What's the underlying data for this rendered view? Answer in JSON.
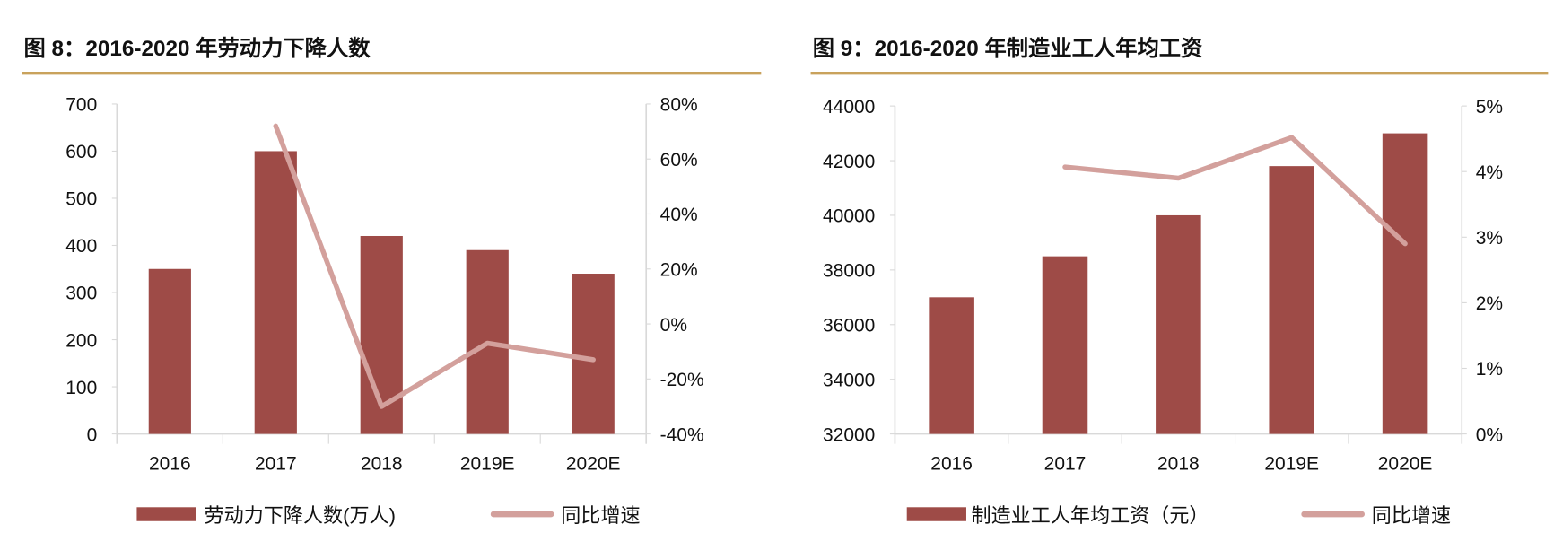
{
  "colors": {
    "bar": "#9e4b47",
    "line": "#d3a09c",
    "rule": "#c9a25c",
    "axis": "#d9d9d9"
  },
  "chart_data": [
    {
      "type": "bar+line",
      "title": "图 8：2016-2020 年劳动力下降人数",
      "categories": [
        "2016",
        "2017",
        "2018",
        "2019E",
        "2020E"
      ],
      "series": [
        {
          "name": "劳动力下降人数(万人)",
          "type": "bar",
          "axis": "left",
          "values": [
            350,
            600,
            420,
            390,
            340
          ]
        },
        {
          "name": "同比增速",
          "type": "line",
          "axis": "right",
          "values": [
            null,
            72,
            -30,
            -7,
            -13
          ]
        }
      ],
      "ylim": [
        0,
        700
      ],
      "yticks": [
        0,
        100,
        200,
        300,
        400,
        500,
        600,
        700
      ],
      "y2lim": [
        -40,
        80
      ],
      "y2ticks": [
        -40,
        -20,
        0,
        20,
        40,
        60,
        80
      ],
      "y2format": "percent",
      "grid": false,
      "legend": "bottom"
    },
    {
      "type": "bar+line",
      "title": "图 9：2016-2020 年制造业工人年均工资",
      "categories": [
        "2016",
        "2017",
        "2018",
        "2019E",
        "2020E"
      ],
      "series": [
        {
          "name": "制造业工人年均工资（元）",
          "type": "bar",
          "axis": "left",
          "values": [
            37000,
            38500,
            40000,
            41800,
            43000
          ]
        },
        {
          "name": "同比增速",
          "type": "line",
          "axis": "right",
          "values": [
            null,
            4.07,
            3.9,
            4.52,
            2.9
          ]
        }
      ],
      "ylim": [
        32000,
        44000
      ],
      "yticks": [
        32000,
        34000,
        36000,
        38000,
        40000,
        42000,
        44000
      ],
      "y2lim": [
        0,
        5
      ],
      "y2ticks": [
        0,
        1,
        2,
        3,
        4,
        5
      ],
      "y2format": "percent",
      "grid": false,
      "legend": "bottom"
    }
  ]
}
